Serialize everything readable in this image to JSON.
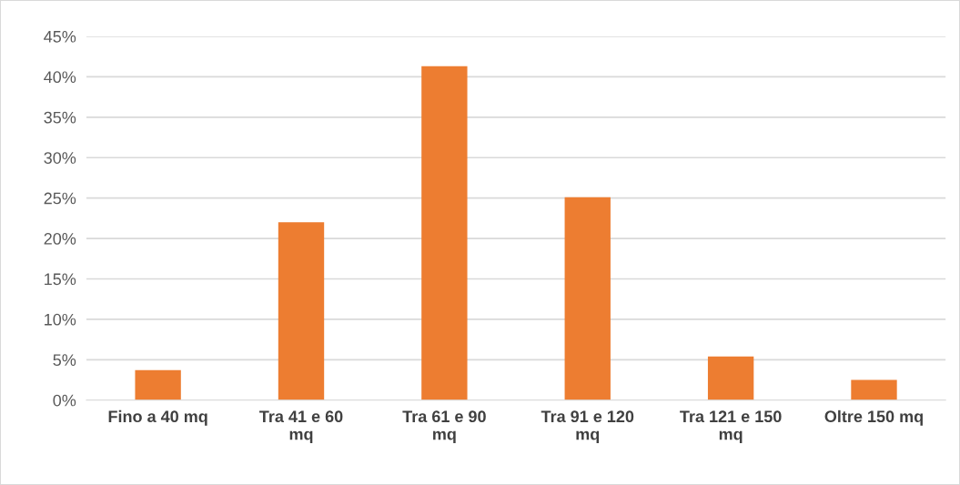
{
  "chart_data": {
    "type": "bar",
    "categories": [
      "Fino a 40 mq",
      "Tra 41 e 60 mq",
      "Tra 61 e 90 mq",
      "Tra 91 e 120 mq",
      "Tra 121 e 150 mq",
      "Oltre 150 mq"
    ],
    "values": [
      3.7,
      22.0,
      41.3,
      25.1,
      5.4,
      2.5
    ],
    "color": "#ed7d31",
    "ylim": [
      0,
      45
    ],
    "yticks": [
      {
        "value": 0,
        "label": "0%"
      },
      {
        "value": 5,
        "label": "5%"
      },
      {
        "value": 10,
        "label": "10%"
      },
      {
        "value": 15,
        "label": "15%"
      },
      {
        "value": 20,
        "label": "20%"
      },
      {
        "value": 25,
        "label": "25%"
      },
      {
        "value": 30,
        "label": "30%"
      },
      {
        "value": 35,
        "label": "35%"
      },
      {
        "value": 40,
        "label": "40%"
      },
      {
        "value": 45,
        "label": "45%"
      }
    ],
    "grid": "y"
  }
}
